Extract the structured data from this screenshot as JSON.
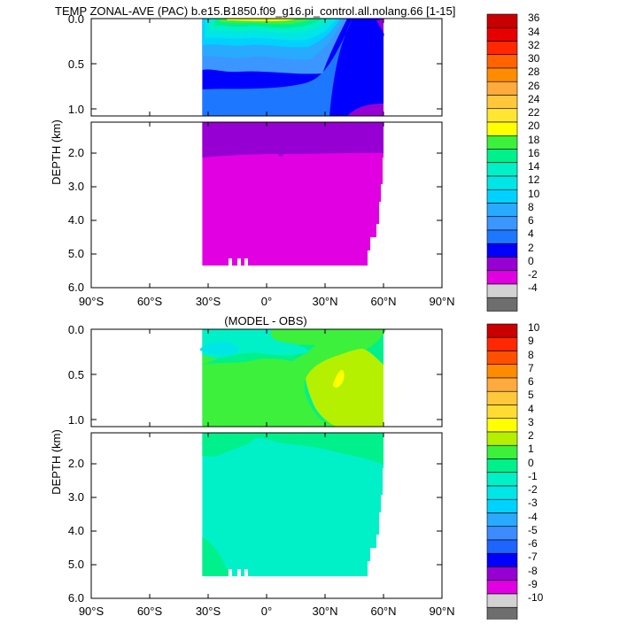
{
  "colors": {
    "top": [
      "#6e6e6e",
      "#d2d2d2",
      "#e100e1",
      "#9600d2",
      "#0000ff",
      "#1e78ff",
      "#3c96ff",
      "#28aaff",
      "#00d2ff",
      "#00e6e6",
      "#00f0c8",
      "#00f08c",
      "#3cf03c",
      "#ffff00",
      "#ffe632",
      "#ffc83c",
      "#ffaa3c",
      "#ff8c00",
      "#ff6400",
      "#ff2800",
      "#e60000",
      "#c80000"
    ],
    "bottom": [
      "#6e6e6e",
      "#d2d2d2",
      "#e100e1",
      "#9600d2",
      "#0000ff",
      "#1e64ff",
      "#3c8cff",
      "#28aaff",
      "#00d2ff",
      "#00e6e6",
      "#00f0c8",
      "#00f08c",
      "#3cf03c",
      "#b4f000",
      "#ffff00",
      "#ffdc32",
      "#ffc83c",
      "#ffaa3c",
      "#ff8c00",
      "#ff5000",
      "#ff2800",
      "#c80000"
    ]
  },
  "chart_data": [
    {
      "type": "heatmap",
      "title": "TEMP ZONAL-AVE (PAC) b.e15.B1850.f09_g16.pi_control.all.nolang.66 [1-15]",
      "xlabel": "",
      "ylabel": "DEPTH (km)",
      "x_ticks": [
        "90°S",
        "60°S",
        "30°S",
        "0°",
        "30°N",
        "60°N",
        "90°N"
      ],
      "y_ticks_upper": [
        "0.0",
        "0.5",
        "1.0"
      ],
      "y_ticks_lower": [
        "2.0",
        "3.0",
        "4.0",
        "5.0",
        "6.0"
      ],
      "xlim": [
        -90,
        90
      ],
      "ylim_km": [
        0,
        6
      ],
      "colorbar_labels": [
        "36",
        "34",
        "32",
        "30",
        "28",
        "26",
        "24",
        "22",
        "20",
        "18",
        "16",
        "14",
        "12",
        "10",
        "8",
        "6",
        "4",
        "2",
        "0",
        "-2",
        "-4"
      ],
      "colorbar_range": [
        -4,
        36
      ]
    },
    {
      "type": "heatmap",
      "title": "(MODEL - OBS)",
      "xlabel": "",
      "ylabel": "DEPTH (km)",
      "x_ticks": [
        "90°S",
        "60°S",
        "30°S",
        "0°",
        "30°N",
        "60°N",
        "90°N"
      ],
      "y_ticks_upper": [
        "0.0",
        "0.5",
        "1.0"
      ],
      "y_ticks_lower": [
        "2.0",
        "3.0",
        "4.0",
        "5.0",
        "6.0"
      ],
      "xlim": [
        -90,
        90
      ],
      "ylim_km": [
        0,
        6
      ],
      "colorbar_labels": [
        "10",
        "9",
        "8",
        "7",
        "6",
        "5",
        "4",
        "3",
        "2",
        "1",
        "0",
        "-1",
        "-2",
        "-3",
        "-4",
        "-5",
        "-6",
        "-7",
        "-8",
        "-9",
        "-10"
      ],
      "colorbar_range": [
        -10,
        10
      ]
    }
  ]
}
